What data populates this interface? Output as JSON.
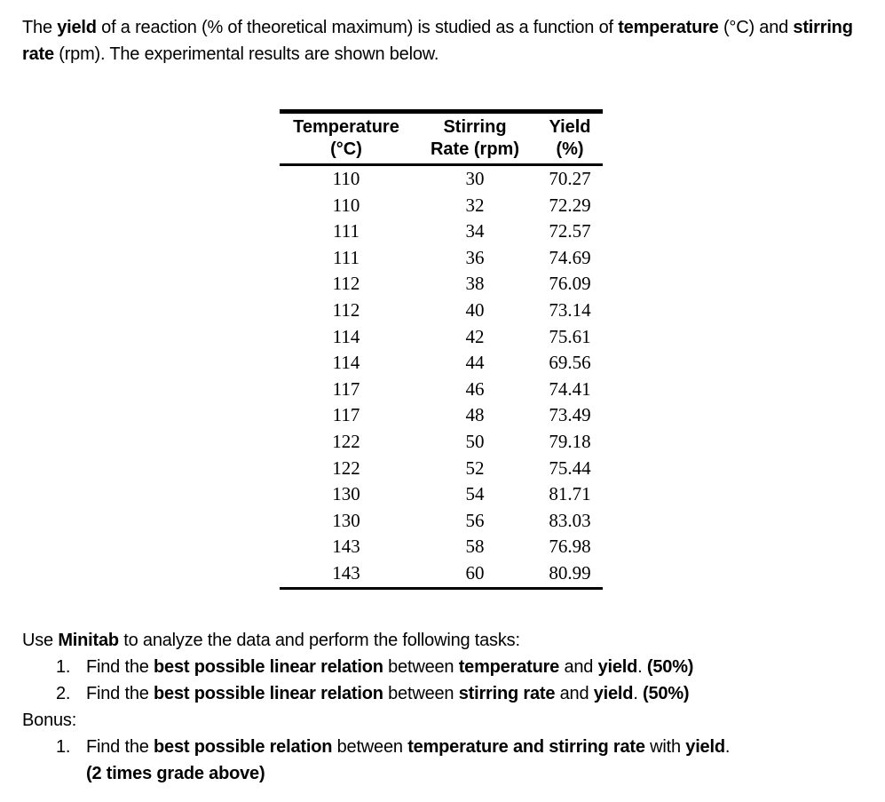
{
  "intro": {
    "segments": [
      {
        "text": "The ",
        "bold": false
      },
      {
        "text": "yield",
        "bold": true
      },
      {
        "text": " of a reaction (% of theoretical maximum) is studied as a function of ",
        "bold": false
      },
      {
        "text": "temperature",
        "bold": true
      },
      {
        "text": " (°C) and ",
        "bold": false
      },
      {
        "text": "stirring rate",
        "bold": true
      },
      {
        "text": " (rpm). The experimental results are shown below.",
        "bold": false
      }
    ]
  },
  "table": {
    "headers": [
      {
        "line1": "Temperature",
        "line2": "(°C)"
      },
      {
        "line1": "Stirring",
        "line2": "Rate (rpm)"
      },
      {
        "line1": "Yield",
        "line2": "(%)"
      }
    ],
    "rows": [
      [
        "110",
        "30",
        "70.27"
      ],
      [
        "110",
        "32",
        "72.29"
      ],
      [
        "111",
        "34",
        "72.57"
      ],
      [
        "111",
        "36",
        "74.69"
      ],
      [
        "112",
        "38",
        "76.09"
      ],
      [
        "112",
        "40",
        "73.14"
      ],
      [
        "114",
        "42",
        "75.61"
      ],
      [
        "114",
        "44",
        "69.56"
      ],
      [
        "117",
        "46",
        "74.41"
      ],
      [
        "117",
        "48",
        "73.49"
      ],
      [
        "122",
        "50",
        "79.18"
      ],
      [
        "122",
        "52",
        "75.44"
      ],
      [
        "130",
        "54",
        "81.71"
      ],
      [
        "130",
        "56",
        "83.03"
      ],
      [
        "143",
        "58",
        "76.98"
      ],
      [
        "143",
        "60",
        "80.99"
      ]
    ]
  },
  "tasks": {
    "intro_segments": [
      {
        "text": "Use ",
        "bold": false
      },
      {
        "text": "Minitab",
        "bold": true
      },
      {
        "text": " to analyze the data and perform the following tasks:",
        "bold": false
      }
    ],
    "items": [
      {
        "number": "1.",
        "segments": [
          {
            "text": "Find the ",
            "bold": false
          },
          {
            "text": "best possible linear relation",
            "bold": true
          },
          {
            "text": " between ",
            "bold": false
          },
          {
            "text": "temperature",
            "bold": true
          },
          {
            "text": " and ",
            "bold": false
          },
          {
            "text": "yield",
            "bold": true
          },
          {
            "text": ". ",
            "bold": false
          },
          {
            "text": "(50%)",
            "bold": true
          }
        ]
      },
      {
        "number": "2.",
        "segments": [
          {
            "text": "Find the ",
            "bold": false
          },
          {
            "text": "best possible linear relation",
            "bold": true
          },
          {
            "text": " between ",
            "bold": false
          },
          {
            "text": "stirring rate",
            "bold": true
          },
          {
            "text": " and ",
            "bold": false
          },
          {
            "text": "yield",
            "bold": true
          },
          {
            "text": ". ",
            "bold": false
          },
          {
            "text": "(50%)",
            "bold": true
          }
        ]
      }
    ]
  },
  "bonus": {
    "label": "Bonus:",
    "items": [
      {
        "number": "1.",
        "lines": [
          [
            {
              "text": "Find the ",
              "bold": false
            },
            {
              "text": "best possible relation",
              "bold": true
            },
            {
              "text": " between ",
              "bold": false
            },
            {
              "text": "temperature and stirring rate",
              "bold": true
            },
            {
              "text": " with ",
              "bold": false
            },
            {
              "text": "yield",
              "bold": true
            },
            {
              "text": ".",
              "bold": false
            }
          ],
          [
            {
              "text": "(2 times grade above)",
              "bold": true
            }
          ]
        ]
      }
    ]
  }
}
